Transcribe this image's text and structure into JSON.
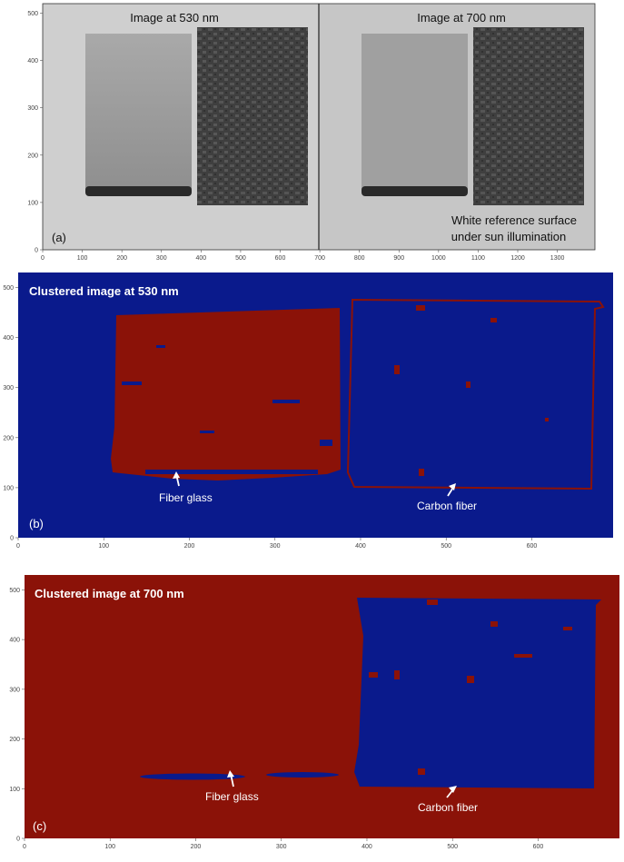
{
  "panel_a": {
    "label": "(a)",
    "title_left": "Image at 530 nm",
    "title_right": "Image at 700 nm",
    "reference_line1": "White reference surface",
    "reference_line2": "under sun illumination",
    "y_ticks": [
      "0",
      "100",
      "200",
      "300",
      "400",
      "500"
    ],
    "x_ticks": [
      "0",
      "100",
      "200",
      "300",
      "400",
      "500",
      "600",
      "700",
      "800",
      "900",
      "1000",
      "1100",
      "1200",
      "1300"
    ]
  },
  "panel_b": {
    "label": "(b)",
    "title": "Clustered image at 530 nm",
    "annotation_left": "Fiber glass",
    "annotation_right": "Carbon fiber",
    "y_ticks": [
      "0",
      "100",
      "200",
      "300",
      "400",
      "500"
    ],
    "x_ticks": [
      "0",
      "100",
      "200",
      "300",
      "400",
      "500",
      "600"
    ]
  },
  "panel_c": {
    "label": "(c)",
    "title": "Clustered image at 700 nm",
    "annotation_left": "Fiber glass",
    "annotation_right": "Carbon fiber",
    "y_ticks": [
      "0",
      "100",
      "200",
      "300",
      "400",
      "500"
    ],
    "x_ticks": [
      "0",
      "100",
      "200",
      "300",
      "400",
      "500",
      "600"
    ]
  },
  "colors": {
    "cluster_blue": "#0a1a8c",
    "cluster_red": "#8b1208",
    "gray_background": "#c9c9c9"
  }
}
